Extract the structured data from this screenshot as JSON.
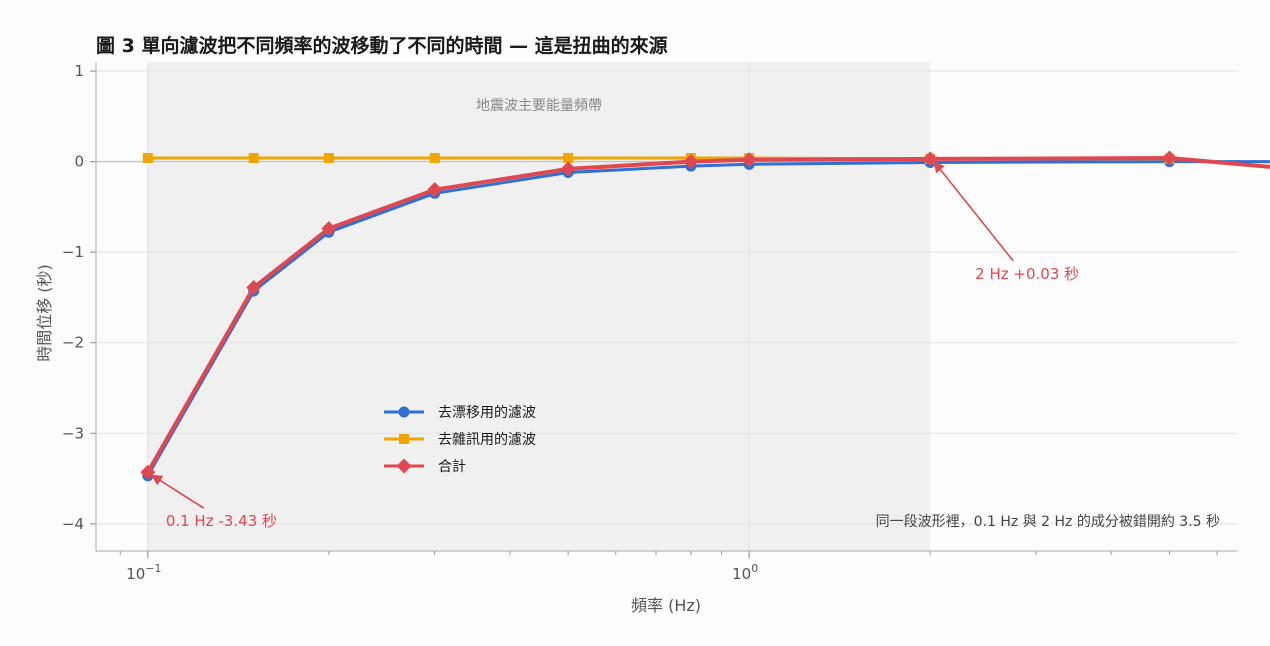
{
  "chart_data": {
    "type": "line",
    "title": "圖 3  單向濾波把不同頻率的波移動了不同的時間 — 這是扭曲的來源",
    "xlabel": "頻率 (Hz)",
    "ylabel": "時間位移 (秒)",
    "x_scale": "log",
    "xlim": [
      0.082,
      6.5
    ],
    "ylim": [
      -4.3,
      1.1
    ],
    "x_ticks": [
      {
        "value": 0.1,
        "base": "10",
        "exp": "−1"
      },
      {
        "value": 1,
        "base": "10",
        "exp": "0"
      }
    ],
    "y_ticks": [
      {
        "value": 1,
        "label": "1"
      },
      {
        "value": 0,
        "label": "0"
      },
      {
        "value": -1,
        "label": "−1"
      },
      {
        "value": -2,
        "label": "−2"
      },
      {
        "value": -3,
        "label": "−3"
      },
      {
        "value": -4,
        "label": "−4"
      }
    ],
    "grid": true,
    "band": {
      "x0": 0.1,
      "x1": 2.0,
      "label": "地震波主要能量頻帶",
      "color": "#ececec"
    },
    "x": [
      0.1,
      0.15,
      0.2,
      0.3,
      0.5,
      0.8,
      1.0,
      2.0,
      5.0,
      8.0
    ],
    "series": [
      {
        "name": "去漂移用的濾波",
        "color": "#2f6fd6",
        "marker": "circle",
        "values": [
          -3.47,
          -1.43,
          -0.78,
          -0.35,
          -0.12,
          -0.05,
          -0.03,
          -0.01,
          0.0,
          0.0
        ]
      },
      {
        "name": "去雜訊用的濾波",
        "color": "#f0a500",
        "marker": "square",
        "values": [
          0.04,
          0.04,
          0.04,
          0.04,
          0.04,
          0.04,
          0.04,
          0.03,
          0.03,
          null
        ]
      },
      {
        "name": "合計",
        "color": "#e04850",
        "marker": "diamond",
        "values": [
          -3.43,
          -1.39,
          -0.74,
          -0.31,
          -0.08,
          0.0,
          0.02,
          0.03,
          0.04,
          -0.08
        ]
      }
    ],
    "annotations": [
      {
        "text": "0.1 Hz  -3.43 秒",
        "x": 0.1,
        "y": -3.43,
        "color": "#e04850"
      },
      {
        "text": "2 Hz  +0.03 秒",
        "x": 2.0,
        "y": 0.03,
        "color": "#e04850"
      }
    ],
    "note": "同一段波形裡，0.1 Hz 與 2 Hz 的成分被錯開約 3.5 秒",
    "legend_position": "center-left"
  }
}
